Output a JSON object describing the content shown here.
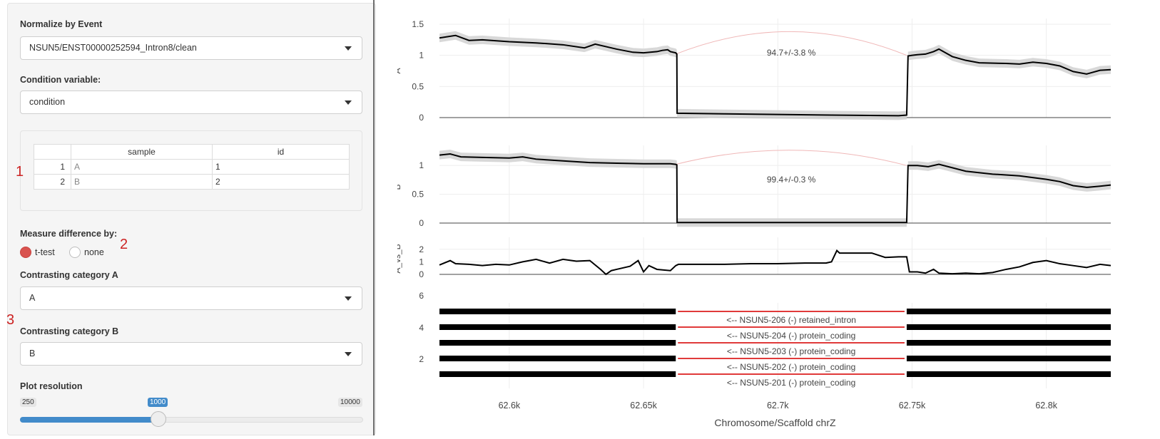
{
  "sidebar": {
    "normalize_label": "Normalize by Event",
    "normalize_value": "NSUN5/ENST00000252594_Intron8/clean",
    "condition_label": "Condition variable:",
    "condition_value": "condition",
    "table": {
      "columns": [
        "sample",
        "id"
      ],
      "rows": [
        {
          "n": "1",
          "sample": "A",
          "id": "1"
        },
        {
          "n": "2",
          "sample": "B",
          "id": "2"
        }
      ]
    },
    "measure_label": "Measure difference by:",
    "measure_options": [
      "t-test",
      "none"
    ],
    "measure_selected": "t-test",
    "cat_a_label": "Contrasting category A",
    "cat_a_value": "A",
    "cat_b_label": "Contrasting category B",
    "cat_b_value": "B",
    "resolution_label": "Plot resolution",
    "resolution_min": "250",
    "resolution_value": "1000",
    "resolution_max": "10000",
    "resolution_fraction": 0.077,
    "accent_color": "#428bca",
    "radio_color": "#d9534f"
  },
  "annotations": {
    "n1": "1",
    "n2": "2",
    "n3": "3",
    "color": "#cc2222"
  },
  "chart_data": {
    "type": "line",
    "xlabel": "Chromosome/Scaffold chrZ",
    "x_ticks": [
      "62.6k",
      "62.65k",
      "62.7k",
      "62.75k",
      "62.8k"
    ],
    "xlim": [
      62574,
      62824
    ],
    "tracks": [
      {
        "ylabel": "A",
        "y_ticks": [
          "0",
          "0.5",
          "1",
          "1.5"
        ],
        "ylim": [
          0,
          1.5
        ],
        "annotation": "94.7+/-3.8 %",
        "series": [
          {
            "x": [
              62574,
              62580,
              62585,
              62590,
              62600,
              62610,
              62620,
              62628,
              62632,
              62640,
              62646,
              62650,
              62655,
              62657,
              62659,
              62660,
              62662,
              62662.4,
              62662.5,
              62680,
              62700,
              62720,
              62745,
              62748,
              62748.5,
              62750,
              62752,
              62755,
              62758,
              62760,
              62765,
              62770,
              62775,
              62785,
              62790,
              62795,
              62800,
              62805,
              62810,
              62815,
              62820,
              62824
            ],
            "y": [
              1.28,
              1.32,
              1.24,
              1.25,
              1.22,
              1.2,
              1.17,
              1.12,
              1.18,
              1.1,
              1.05,
              1.04,
              1.06,
              1.08,
              1.09,
              1.06,
              1.04,
              1.02,
              0.07,
              0.06,
              0.05,
              0.04,
              0.03,
              0.04,
              0.99,
              1.0,
              1.01,
              1.02,
              1.06,
              1.1,
              0.98,
              0.92,
              0.88,
              0.87,
              0.86,
              0.89,
              0.87,
              0.83,
              0.74,
              0.7,
              0.76,
              0.77
            ]
          }
        ]
      },
      {
        "ylabel": "B",
        "y_ticks": [
          "0",
          "0.5",
          "1"
        ],
        "ylim": [
          0,
          1.25
        ],
        "annotation": "99.4+/-0.3 %",
        "series": [
          {
            "x": [
              62574,
              62578,
              62582,
              62590,
              62600,
              62605,
              62610,
              62620,
              62630,
              62640,
              62650,
              62660,
              62662,
              62662.4,
              62662.5,
              62680,
              62700,
              62720,
              62748,
              62748.5,
              62752,
              62756,
              62760,
              62770,
              62780,
              62790,
              62800,
              62805,
              62810,
              62815,
              62820,
              62824
            ],
            "y": [
              1.18,
              1.2,
              1.15,
              1.14,
              1.13,
              1.15,
              1.11,
              1.08,
              1.05,
              1.04,
              1.03,
              1.03,
              1.02,
              1.01,
              0.01,
              0.01,
              0.01,
              0.01,
              0.01,
              1.0,
              1.0,
              0.98,
              1.02,
              0.9,
              0.85,
              0.82,
              0.76,
              0.72,
              0.65,
              0.62,
              0.64,
              0.66
            ]
          }
        ]
      },
      {
        "ylabel": "A_vs_B",
        "y_ticks": [
          "0",
          "1",
          "2"
        ],
        "ylim": [
          0,
          2.5
        ],
        "series": [
          {
            "x": [
              62574,
              62578,
              62580,
              62585,
              62590,
              62595,
              62600,
              62605,
              62610,
              62615,
              62620,
              62625,
              62630,
              62634,
              62636,
              62638,
              62640,
              62645,
              62648,
              62650,
              62652,
              62655,
              62660,
              62662,
              62663,
              62670,
              62680,
              62690,
              62700,
              62710,
              62718,
              62720,
              62722,
              62723,
              62728,
              62730,
              62735,
              62740,
              62745,
              62748,
              62749,
              62752,
              62755,
              62758,
              62760,
              62765,
              62770,
              62775,
              62780,
              62785,
              62790,
              62795,
              62800,
              62805,
              62810,
              62815,
              62820,
              62824
            ],
            "y": [
              0.75,
              1.1,
              0.85,
              0.8,
              0.7,
              0.8,
              0.75,
              1.0,
              1.2,
              0.9,
              1.2,
              1.05,
              1.1,
              0.4,
              0.0,
              0.3,
              0.4,
              0.65,
              1.1,
              0.2,
              0.7,
              0.4,
              0.3,
              0.7,
              0.8,
              0.8,
              0.8,
              0.85,
              0.85,
              0.9,
              0.9,
              1.0,
              1.9,
              1.7,
              1.7,
              1.7,
              1.7,
              1.35,
              1.4,
              1.4,
              0.2,
              0.2,
              0.1,
              0.4,
              0.1,
              0.05,
              0.1,
              0.05,
              0.15,
              0.4,
              0.6,
              0.95,
              1.1,
              0.85,
              0.7,
              0.55,
              0.8,
              0.7
            ]
          }
        ]
      }
    ],
    "annotation_track": {
      "y_ticks": [
        "2",
        "4",
        "6"
      ],
      "transcripts": [
        "<-- NSUN5-206 (-) retained_intron",
        "<-- NSUN5-204 (-) protein_coding",
        "<-- NSUN5-203 (-) protein_coding",
        "<-- NSUN5-202 (-) protein_coding",
        "<-- NSUN5-201 (-) protein_coding"
      ],
      "exon_left": [
        62574,
        62662
      ],
      "exon_right": [
        62748,
        62824
      ],
      "intron_color": "#e03a3a",
      "exon_color": "#000000"
    },
    "grid": true,
    "band_color": "#d4d4d4",
    "arc_color": "#f0b8b8"
  }
}
